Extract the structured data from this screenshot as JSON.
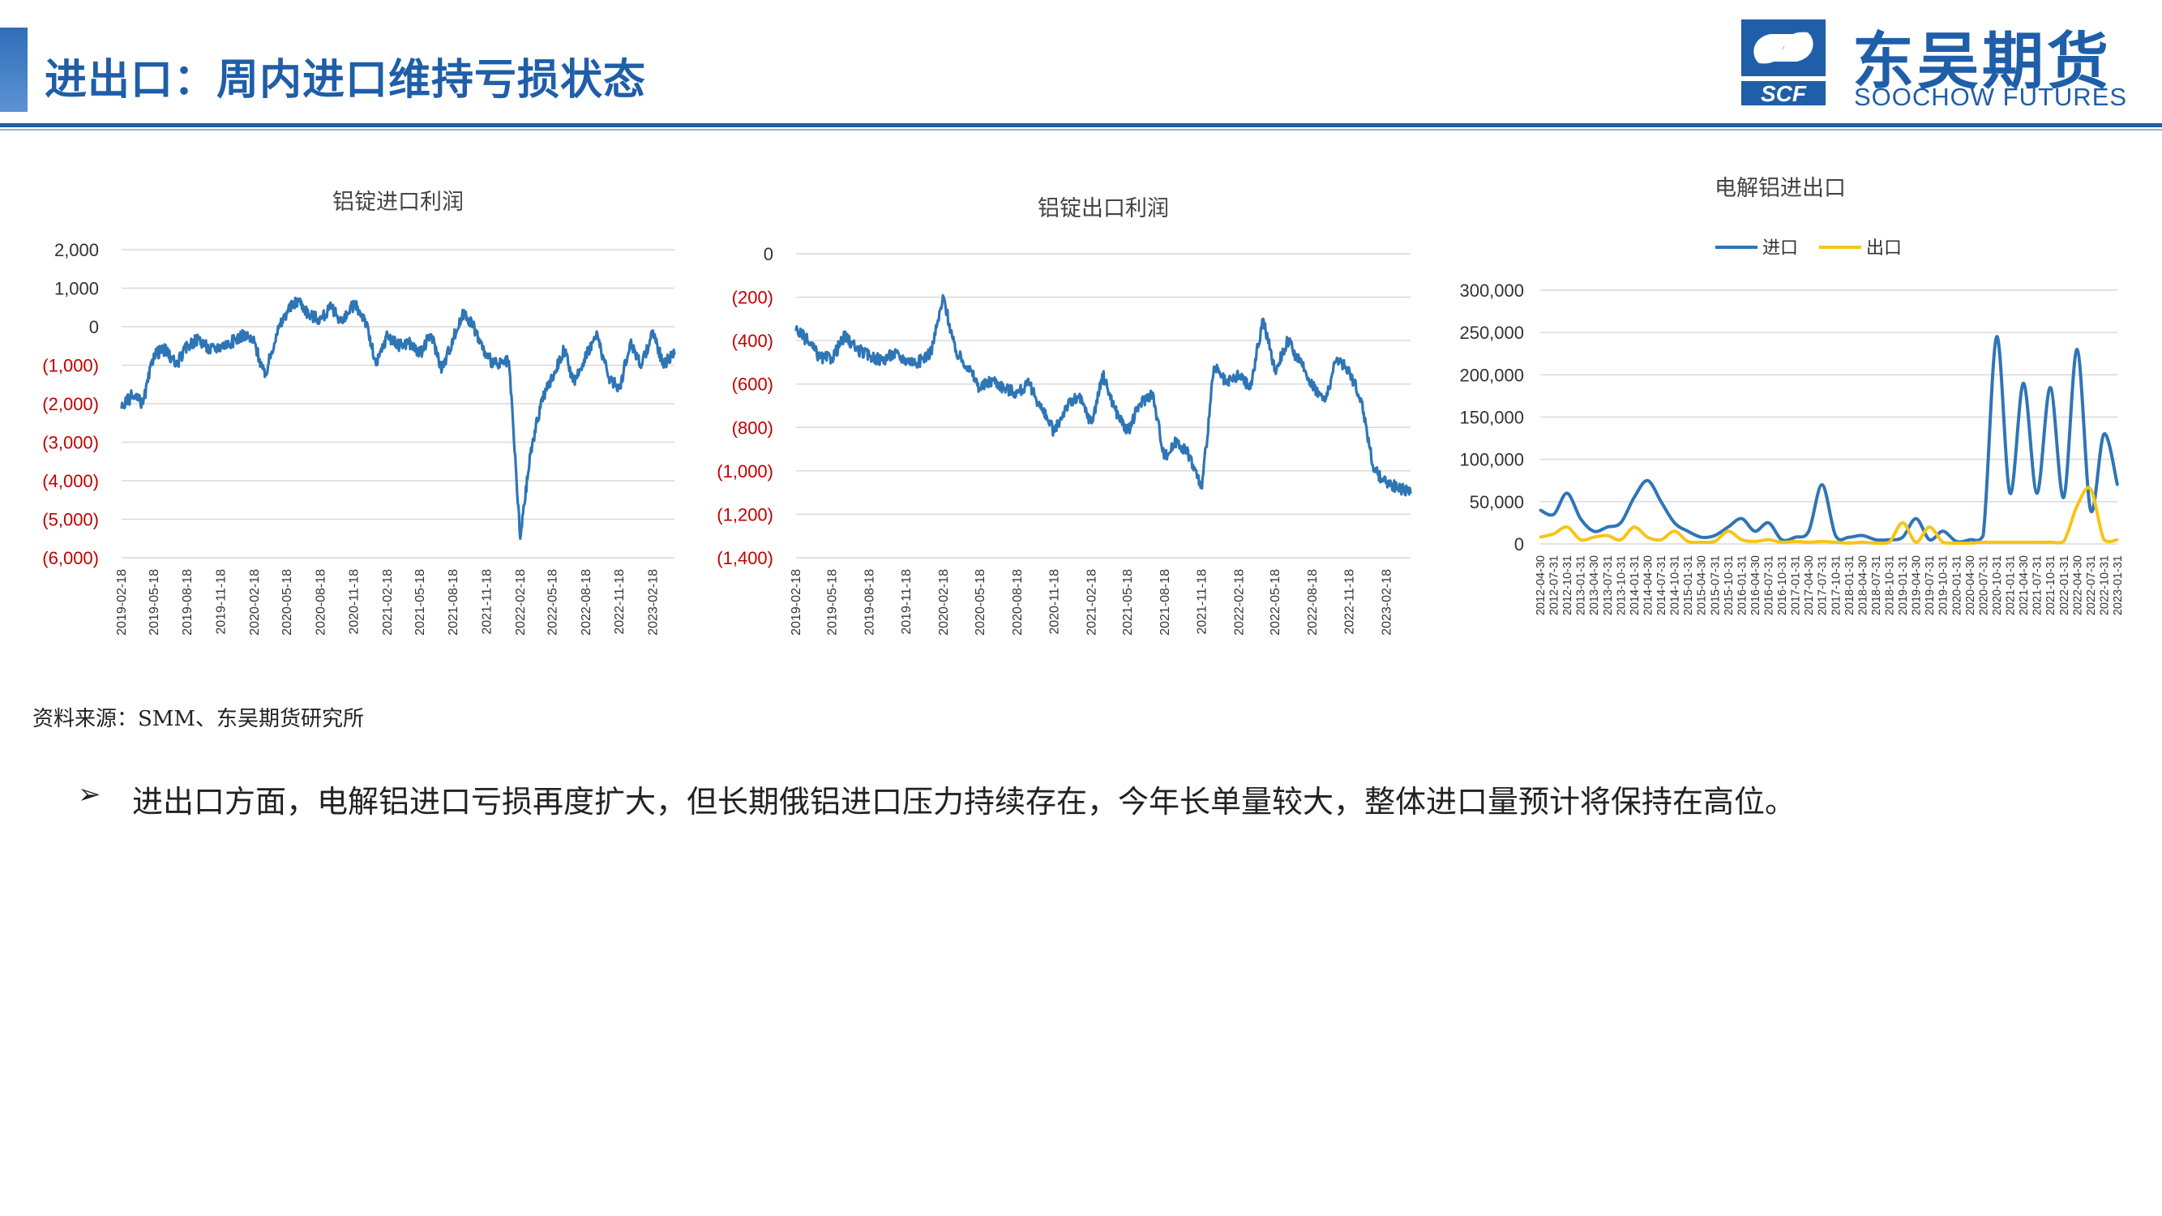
{
  "header": {
    "title": "进出口：周内进口维持亏损状态",
    "logo_cn": "东吴期货",
    "logo_en": "SOOCHOW FUTURES",
    "logo_mark_text": "SCF",
    "accent_color": "#1f5ea8"
  },
  "source_note": "资料来源：SMM、东吴期货研究所",
  "bullet": {
    "symbol": "➢",
    "text": "进出口方面，电解铝进口亏损再度扩大，但长期俄铝进口压力持续存在，今年长单量较大，整体进口量预计将保持在高位。"
  },
  "chart_data": [
    {
      "type": "line",
      "title": "铝锭进口利润",
      "ylim": [
        -6000,
        2000
      ],
      "ytick_labels": [
        "2,000",
        "1,000",
        "0",
        "(1,000)",
        "(2,000)",
        "(3,000)",
        "(4,000)",
        "(5,000)",
        "(6,000)"
      ],
      "x_tick_labels": [
        "2019-02-18",
        "2019-05-18",
        "2019-08-18",
        "2019-11-18",
        "2020-02-18",
        "2020-05-18",
        "2020-08-18",
        "2020-11-18",
        "2021-02-18",
        "2021-05-18",
        "2021-08-18",
        "2021-11-18",
        "2022-02-18",
        "2022-05-18",
        "2022-08-18",
        "2022-11-18",
        "2023-02-18"
      ],
      "grid": true,
      "color": "#2e75b6",
      "series": [
        {
          "x": [
            "2019-02-18",
            "2019-03-18",
            "2019-04-18",
            "2019-05-18",
            "2019-06-18",
            "2019-07-18",
            "2019-08-18",
            "2019-09-18",
            "2019-10-18",
            "2019-11-18",
            "2019-12-18",
            "2020-01-18",
            "2020-02-18",
            "2020-03-18",
            "2020-04-18",
            "2020-05-18",
            "2020-06-18",
            "2020-07-18",
            "2020-08-18",
            "2020-09-18",
            "2020-10-18",
            "2020-11-18",
            "2020-12-18",
            "2021-01-18",
            "2021-02-18",
            "2021-03-18",
            "2021-04-18",
            "2021-05-18",
            "2021-06-18",
            "2021-07-18",
            "2021-08-18",
            "2021-09-18",
            "2021-10-18",
            "2021-11-18",
            "2021-12-18",
            "2022-01-18",
            "2022-02-18",
            "2022-03-18",
            "2022-04-18",
            "2022-05-18",
            "2022-06-18",
            "2022-07-18",
            "2022-08-18",
            "2022-09-18",
            "2022-10-18",
            "2022-11-18",
            "2022-12-18",
            "2023-01-18",
            "2023-02-18",
            "2023-03-18",
            "2023-04-18"
          ],
          "values": [
            -2100,
            -1800,
            -2000,
            -700,
            -600,
            -1000,
            -500,
            -300,
            -600,
            -500,
            -400,
            -200,
            -400,
            -1300,
            -200,
            400,
            700,
            300,
            200,
            500,
            100,
            600,
            200,
            -1000,
            -200,
            -500,
            -400,
            -700,
            -200,
            -1100,
            -300,
            400,
            -100,
            -800,
            -1000,
            -900,
            -5500,
            -3300,
            -1900,
            -1300,
            -600,
            -1500,
            -700,
            -200,
            -1300,
            -1600,
            -400,
            -1000,
            -100,
            -1000,
            -700
          ]
        }
      ]
    },
    {
      "type": "line",
      "title": "铝锭出口利润",
      "ylim": [
        -1400,
        0
      ],
      "ytick_labels": [
        "0",
        "(200)",
        "(400)",
        "(600)",
        "(800)",
        "(1,000)",
        "(1,200)",
        "(1,400)"
      ],
      "x_tick_labels": [
        "2019-02-18",
        "2019-05-18",
        "2019-08-18",
        "2019-11-18",
        "2020-02-18",
        "2020-05-18",
        "2020-08-18",
        "2020-11-18",
        "2021-02-18",
        "2021-05-18",
        "2021-08-18",
        "2021-11-18",
        "2022-02-18",
        "2022-05-18",
        "2022-08-18",
        "2022-11-18",
        "2023-02-18"
      ],
      "grid": true,
      "color": "#2e75b6",
      "series": [
        {
          "x": [
            "2019-02-18",
            "2019-03-18",
            "2019-04-18",
            "2019-05-18",
            "2019-06-18",
            "2019-07-18",
            "2019-08-18",
            "2019-09-18",
            "2019-10-18",
            "2019-11-18",
            "2019-12-18",
            "2020-01-18",
            "2020-02-18",
            "2020-03-18",
            "2020-04-18",
            "2020-05-18",
            "2020-06-18",
            "2020-07-18",
            "2020-08-18",
            "2020-09-18",
            "2020-10-18",
            "2020-11-18",
            "2020-12-18",
            "2021-01-18",
            "2021-02-18",
            "2021-03-18",
            "2021-04-18",
            "2021-05-18",
            "2021-06-18",
            "2021-07-18",
            "2021-08-18",
            "2021-09-18",
            "2021-10-18",
            "2021-11-18",
            "2021-12-18",
            "2022-01-18",
            "2022-02-18",
            "2022-03-18",
            "2022-04-18",
            "2022-05-18",
            "2022-06-18",
            "2022-07-18",
            "2022-08-18",
            "2022-09-18",
            "2022-10-18",
            "2022-11-18",
            "2022-12-18",
            "2023-01-18",
            "2023-02-18",
            "2023-03-18",
            "2023-04-18"
          ],
          "values": [
            -350,
            -400,
            -480,
            -480,
            -380,
            -440,
            -470,
            -490,
            -460,
            -490,
            -500,
            -450,
            -200,
            -450,
            -520,
            -620,
            -580,
            -620,
            -640,
            -600,
            -720,
            -820,
            -700,
            -660,
            -780,
            -560,
            -720,
            -820,
            -690,
            -640,
            -940,
            -860,
            -930,
            -1080,
            -520,
            -600,
            -560,
            -620,
            -300,
            -540,
            -400,
            -500,
            -600,
            -680,
            -480,
            -540,
            -680,
            -1000,
            -1050,
            -1080,
            -1100
          ]
        }
      ]
    },
    {
      "type": "line",
      "title": "电解铝进出口",
      "ylim": [
        0,
        300000
      ],
      "ytick_labels": [
        "300,000",
        "250,000",
        "200,000",
        "150,000",
        "100,000",
        "50,000",
        "0"
      ],
      "x_tick_labels": [
        "2012-04-30",
        "2012-07-31",
        "2012-10-31",
        "2013-01-31",
        "2013-04-30",
        "2013-07-31",
        "2013-10-31",
        "2014-01-31",
        "2014-04-30",
        "2014-07-31",
        "2014-10-31",
        "2015-01-31",
        "2015-04-30",
        "2015-07-31",
        "2015-10-31",
        "2016-01-31",
        "2016-04-30",
        "2016-07-31",
        "2016-10-31",
        "2017-01-31",
        "2017-04-30",
        "2017-07-31",
        "2017-10-31",
        "2018-01-31",
        "2018-04-30",
        "2018-07-31",
        "2018-10-31",
        "2019-01-31",
        "2019-04-30",
        "2019-07-31",
        "2019-10-31",
        "2020-01-31",
        "2020-04-30",
        "2020-07-31",
        "2020-10-31",
        "2021-01-31",
        "2021-04-30",
        "2021-07-31",
        "2021-10-31",
        "2022-01-31",
        "2022-04-30",
        "2022-07-31",
        "2022-10-31",
        "2023-01-31"
      ],
      "legend": [
        "进口",
        "出口"
      ],
      "legend_position": "top-center",
      "grid": true,
      "series": [
        {
          "name": "进口",
          "color": "#2e75b6",
          "values": [
            40000,
            35000,
            60000,
            30000,
            15000,
            20000,
            25000,
            55000,
            75000,
            50000,
            25000,
            15000,
            8000,
            10000,
            20000,
            30000,
            15000,
            25000,
            5000,
            8000,
            15000,
            70000,
            10000,
            8000,
            10000,
            5000,
            5000,
            8000,
            30000,
            5000,
            15000,
            3000,
            5000,
            10000,
            245000,
            60000,
            190000,
            60000,
            185000,
            55000,
            230000,
            40000,
            130000,
            70000
          ]
        },
        {
          "name": "出口",
          "color": "#f5c518",
          "values": [
            8000,
            12000,
            20000,
            5000,
            8000,
            10000,
            5000,
            20000,
            8000,
            5000,
            15000,
            3000,
            2000,
            3000,
            15000,
            5000,
            3000,
            5000,
            2000,
            3000,
            2000,
            3000,
            2000,
            1000,
            2000,
            1000,
            2000,
            25000,
            2000,
            20000,
            2000,
            1000,
            1000,
            2000,
            2000,
            2000,
            2000,
            2000,
            2000,
            3000,
            45000,
            65000,
            5000,
            5000
          ]
        }
      ]
    }
  ]
}
